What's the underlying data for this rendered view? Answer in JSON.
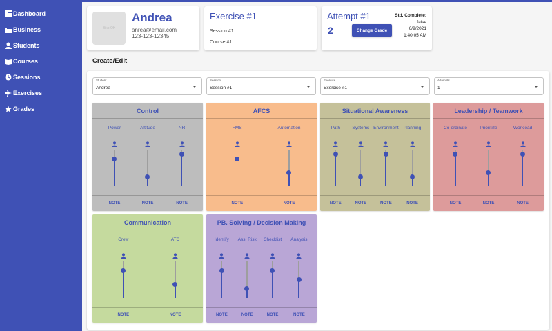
{
  "nav": [
    {
      "label": "Dashboard",
      "icon": "dashboard-icon"
    },
    {
      "label": "Business",
      "icon": "business-icon"
    },
    {
      "label": "Students",
      "icon": "person-icon"
    },
    {
      "label": "Courses",
      "icon": "book-icon"
    },
    {
      "label": "Sessions",
      "icon": "clock-icon"
    },
    {
      "label": "Exercises",
      "icon": "airplane-icon"
    },
    {
      "label": "Grades",
      "icon": "star-icon"
    }
  ],
  "profile": {
    "name": "Andrea",
    "email": "anrea@email.com",
    "phone": "123-123-12345",
    "avatar_text": "Biko OK"
  },
  "exercise": {
    "title": "Exercise #1",
    "session": "Session #1",
    "course": "Course #1"
  },
  "attempt": {
    "title": "Attempt #1",
    "number": "2",
    "button": "Change Grade",
    "status_label": "Std. Complete:",
    "status_value": "false",
    "date": "6/9/2021",
    "time": "1:40:05 AM"
  },
  "page_title": "Create/Edit",
  "selects": [
    {
      "label": "Student",
      "value": "Andrea"
    },
    {
      "label": "Session",
      "value": "Session #1"
    },
    {
      "label": "Exercise",
      "value": "Exercise #1"
    },
    {
      "label": "Attempts",
      "value": "1"
    }
  ],
  "note_label": "NOTE",
  "categories": [
    {
      "title": "Control",
      "color": "#bdbdbd",
      "skills": [
        {
          "label": "Power",
          "value": 0.75
        },
        {
          "label": "Attitude",
          "value": 0.25
        },
        {
          "label": "NR",
          "value": 0.87
        }
      ]
    },
    {
      "title": "AFCS",
      "color": "#f8bc8c",
      "skills": [
        {
          "label": "FMS",
          "value": 0.75
        },
        {
          "label": "Automation",
          "value": 0.37
        }
      ]
    },
    {
      "title": "Situational Awareness",
      "color": "#c5c19a",
      "skills": [
        {
          "label": "Path",
          "value": 0.87
        },
        {
          "label": "Systems",
          "value": 0.25
        },
        {
          "label": "Environment",
          "value": 0.87
        },
        {
          "label": "Planning",
          "value": 0.25
        }
      ]
    },
    {
      "title": "Leadership / Teamwork",
      "color": "#dd9b9b",
      "skills": [
        {
          "label": "Co-ordinate",
          "value": 0.87
        },
        {
          "label": "Prioritize",
          "value": 0.37
        },
        {
          "label": "Workload",
          "value": 0.87
        }
      ]
    },
    {
      "title": "Communication",
      "color": "#c5da9e",
      "skills": [
        {
          "label": "Crew",
          "value": 0.75
        },
        {
          "label": "ATC",
          "value": 0.37
        }
      ]
    },
    {
      "title": "PB. Solving / Decision Making",
      "color": "#b9a6d6",
      "skills": [
        {
          "label": "Identify",
          "value": 0.75
        },
        {
          "label": "Ass. Risk",
          "value": 0.25
        },
        {
          "label": "Checklist",
          "value": 0.75
        },
        {
          "label": "Analysis",
          "value": 0.5
        }
      ]
    }
  ]
}
